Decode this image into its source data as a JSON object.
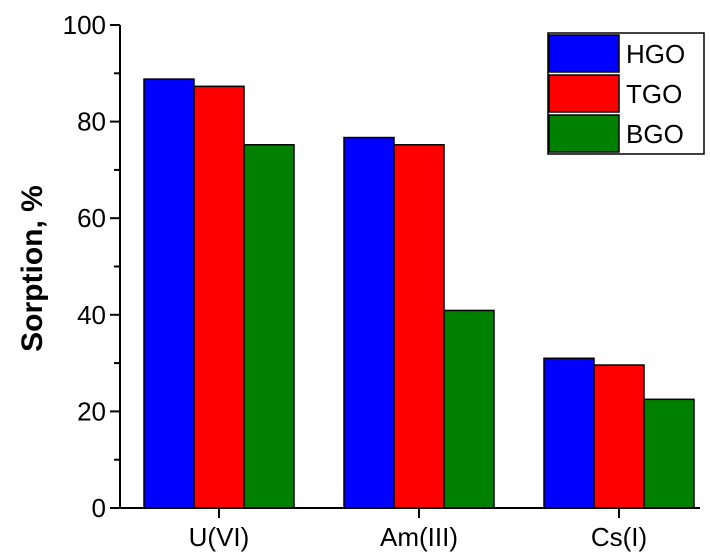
{
  "chart_data": {
    "type": "bar",
    "title": "",
    "xlabel": "",
    "ylabel": "Sorption, %",
    "ylim": [
      0,
      100
    ],
    "yticks": [
      0,
      20,
      40,
      60,
      80,
      100
    ],
    "categories": [
      "U(VI)",
      "Am(III)",
      "Cs(I)"
    ],
    "series": [
      {
        "name": "HGO",
        "color": "#0000ff",
        "values": [
          88.8,
          76.7,
          31.0
        ]
      },
      {
        "name": "TGO",
        "color": "#ff0000",
        "values": [
          87.3,
          75.2,
          29.6
        ]
      },
      {
        "name": "BGO",
        "color": "#008000",
        "values": [
          75.2,
          40.9,
          22.5
        ]
      }
    ],
    "legend_position": "top-right",
    "grid": false
  }
}
